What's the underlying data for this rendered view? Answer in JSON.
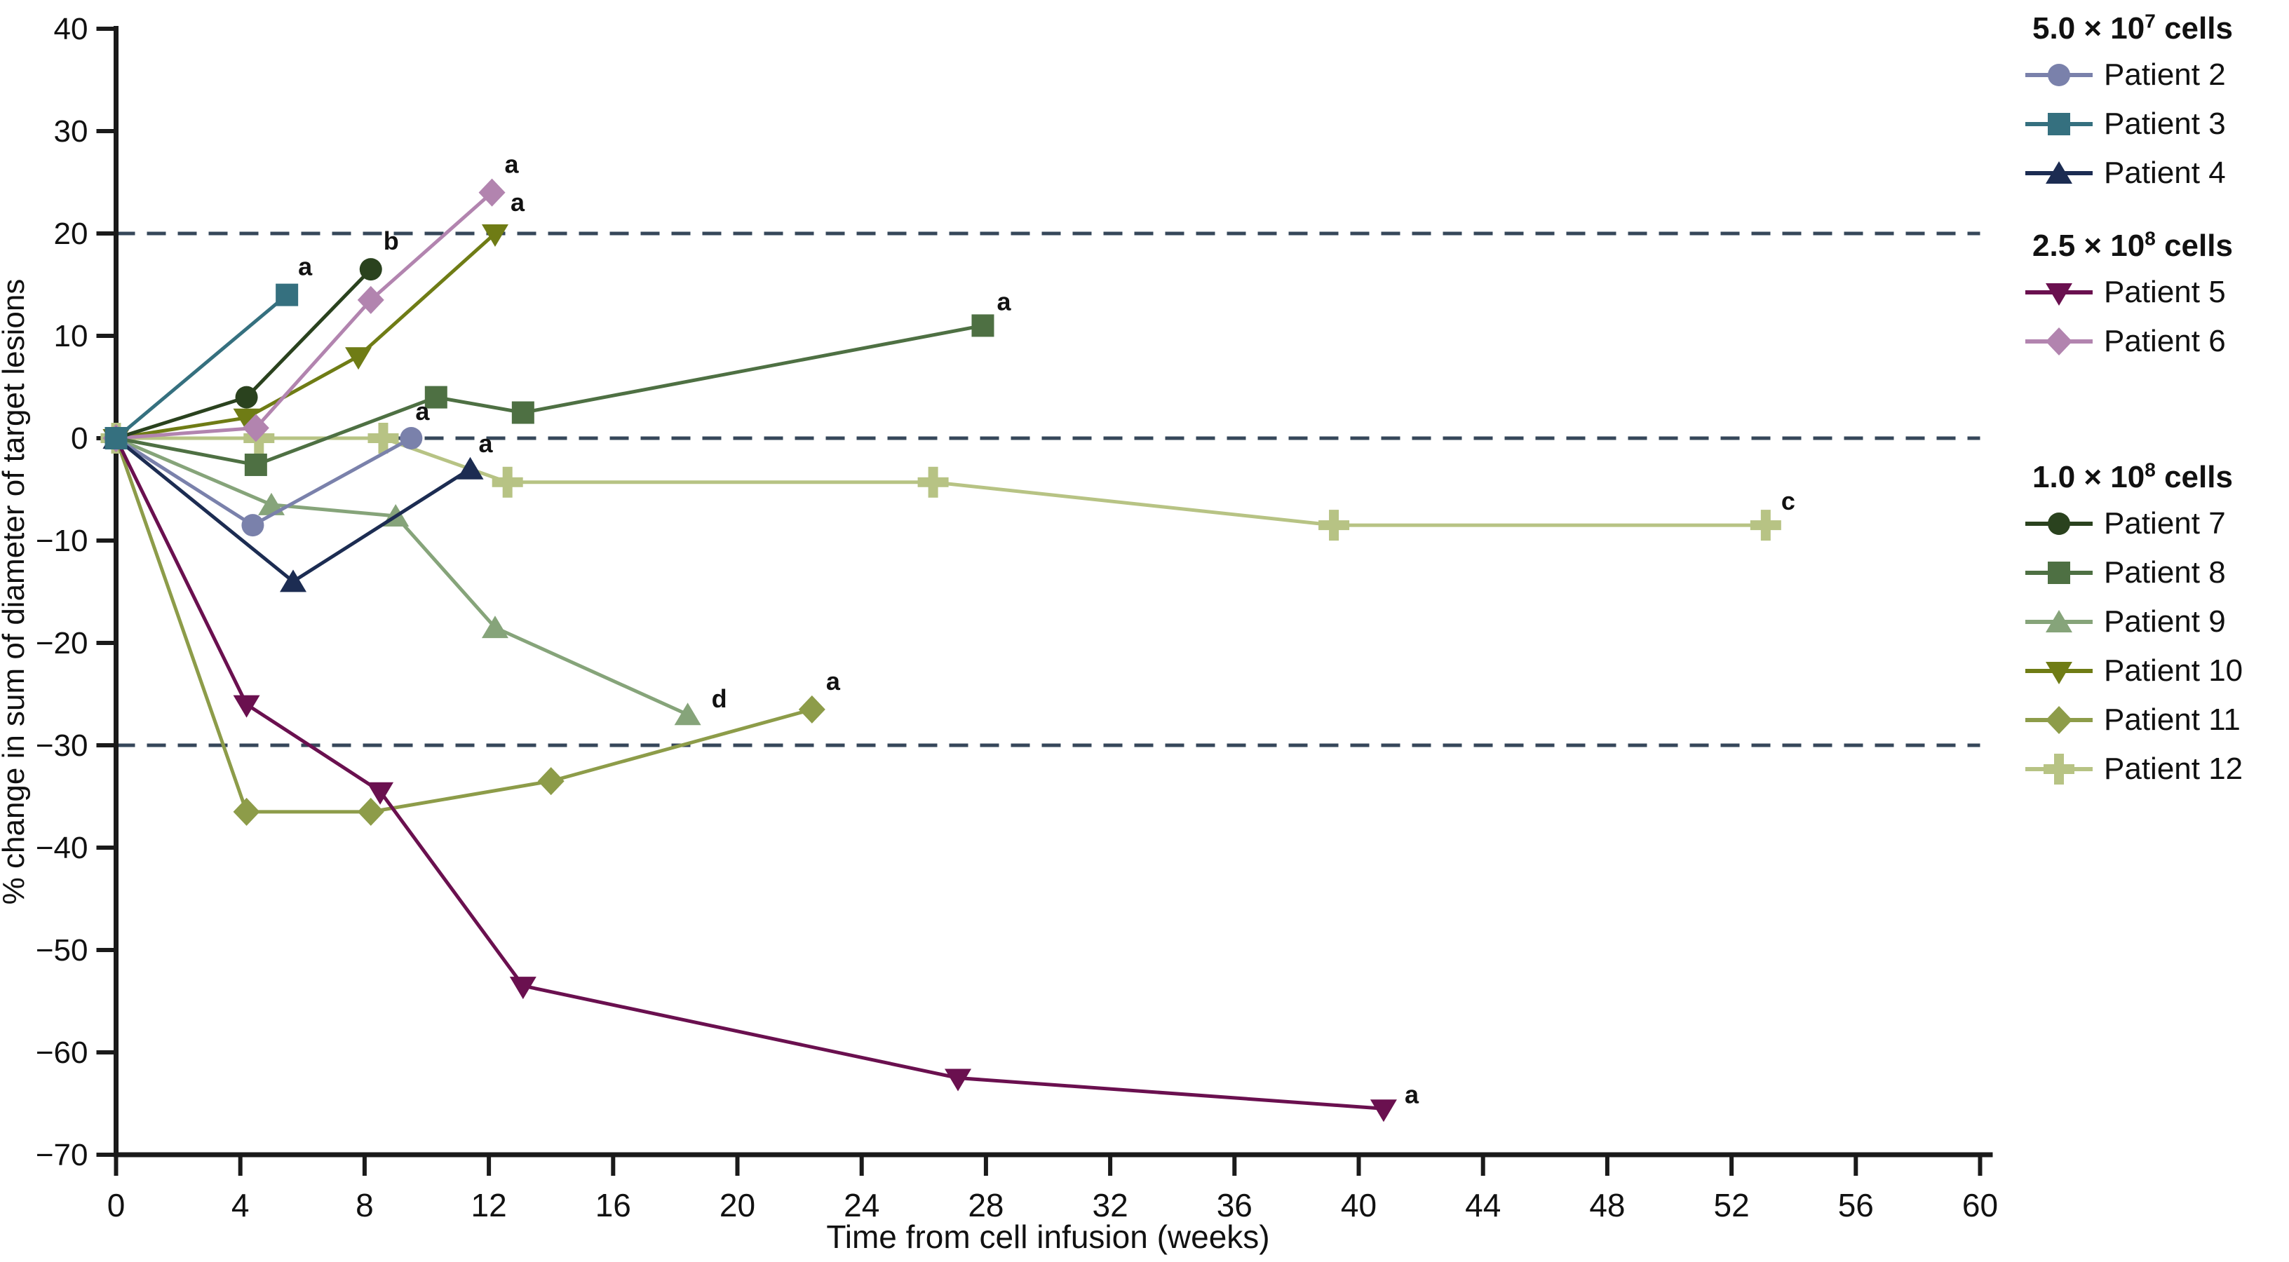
{
  "figure": {
    "background": "#ffffff"
  },
  "legend": {
    "groups": [
      {
        "title_base": "5.0 × 10",
        "title_sup": "7",
        "title_suffix": " cells",
        "items": [
          {
            "id": "p2",
            "label": "Patient 2"
          },
          {
            "id": "p3",
            "label": "Patient 3"
          },
          {
            "id": "p4",
            "label": "Patient 4"
          }
        ]
      },
      {
        "title_base": "2.5 × 10",
        "title_sup": "8",
        "title_suffix": " cells",
        "items": [
          {
            "id": "p5",
            "label": "Patient 5"
          },
          {
            "id": "p6",
            "label": "Patient 6"
          }
        ]
      },
      {
        "title_base": "1.0 × 10",
        "title_sup": "8",
        "title_suffix": " cells",
        "items": [
          {
            "id": "p7",
            "label": "Patient 7"
          },
          {
            "id": "p8",
            "label": "Patient 8"
          },
          {
            "id": "p9",
            "label": "Patient 9"
          },
          {
            "id": "p10",
            "label": "Patient 10"
          },
          {
            "id": "p11",
            "label": "Patient 11"
          },
          {
            "id": "p12",
            "label": "Patient 12"
          }
        ]
      }
    ]
  },
  "chart_data": {
    "type": "line",
    "title": "",
    "xlabel": "Time from cell infusion (weeks)",
    "ylabel": "% change in sum of diameter of target lesions",
    "xlim": [
      0,
      60
    ],
    "ylim": [
      -70,
      40
    ],
    "x_ticks": [
      0,
      4,
      8,
      12,
      16,
      20,
      24,
      28,
      32,
      36,
      40,
      44,
      48,
      52,
      56,
      60
    ],
    "y_ticks": [
      40,
      30,
      20,
      10,
      0,
      -10,
      -20,
      -30,
      -40,
      -50,
      -60,
      -70
    ],
    "grid": "off",
    "reference_lines": [
      20,
      0,
      -30
    ],
    "reference_color": "#36475a",
    "axis_color": "#1a1a1a",
    "legend_position": "right",
    "draw_order": [
      "p12",
      "p11",
      "p9",
      "p5",
      "p10",
      "p6",
      "p7",
      "p8",
      "p2",
      "p4",
      "p3"
    ],
    "series": [
      {
        "id": "p2",
        "name": "Patient 2",
        "group": "5.0 × 10⁷ cells",
        "color": "#7a81ab",
        "marker": "circle",
        "annotation": {
          "text": "a",
          "dx": 6,
          "dy": -26
        },
        "points": [
          [
            0,
            0
          ],
          [
            4.4,
            -8.5
          ],
          [
            9.5,
            0
          ]
        ]
      },
      {
        "id": "p3",
        "name": "Patient 3",
        "group": "5.0 × 10⁷ cells",
        "color": "#35707f",
        "marker": "square",
        "annotation": {
          "text": "a",
          "dx": 16,
          "dy": -28
        },
        "points": [
          [
            0,
            0
          ],
          [
            5.5,
            14
          ]
        ]
      },
      {
        "id": "p4",
        "name": "Patient 4",
        "group": "5.0 × 10⁷ cells",
        "color": "#1c2c52",
        "marker": "triangle-up",
        "annotation": {
          "text": "a",
          "dx": 12,
          "dy": -24
        },
        "points": [
          [
            0,
            0
          ],
          [
            5.7,
            -14
          ],
          [
            11.4,
            -3
          ]
        ]
      },
      {
        "id": "p5",
        "name": "Patient 5",
        "group": "2.5 × 10⁸ cells",
        "color": "#6a104f",
        "marker": "triangle-down",
        "annotation": {
          "text": "a",
          "dx": 30,
          "dy": -8
        },
        "points": [
          [
            0,
            0
          ],
          [
            4.2,
            -26
          ],
          [
            8.5,
            -34.5
          ],
          [
            13.1,
            -53.5
          ],
          [
            27.1,
            -62.5
          ],
          [
            40.8,
            -65.5
          ]
        ]
      },
      {
        "id": "p6",
        "name": "Patient 6",
        "group": "2.5 × 10⁸ cells",
        "color": "#b284af",
        "marker": "diamond",
        "annotation": {
          "text": "a",
          "dx": 18,
          "dy": -28
        },
        "points": [
          [
            0,
            0
          ],
          [
            4.5,
            1
          ],
          [
            8.2,
            13.5
          ],
          [
            12.1,
            24
          ]
        ]
      },
      {
        "id": "p7",
        "name": "Patient 7",
        "group": "1.0 × 10⁸ cells",
        "color": "#2a421e",
        "marker": "circle",
        "annotation": {
          "text": "b",
          "dx": 18,
          "dy": -28
        },
        "points": [
          [
            0,
            0
          ],
          [
            4.2,
            4
          ],
          [
            8.2,
            16.5
          ]
        ]
      },
      {
        "id": "p8",
        "name": "Patient 8",
        "group": "1.0 × 10⁸ cells",
        "color": "#4e7043",
        "marker": "square",
        "annotation": {
          "text": "a",
          "dx": 20,
          "dy": -22
        },
        "points": [
          [
            0,
            0
          ],
          [
            4.5,
            -2.6
          ],
          [
            10.3,
            4
          ],
          [
            13.1,
            2.5
          ],
          [
            27.9,
            11
          ]
        ]
      },
      {
        "id": "p9",
        "name": "Patient 9",
        "group": "1.0 × 10⁸ cells",
        "color": "#86a47a",
        "marker": "triangle-up",
        "annotation": {
          "text": "d",
          "dx": 34,
          "dy": -10
        },
        "points": [
          [
            0,
            0
          ],
          [
            5,
            -6.5
          ],
          [
            9,
            -7.6
          ],
          [
            12.2,
            -18.5
          ],
          [
            18.4,
            -27
          ]
        ]
      },
      {
        "id": "p10",
        "name": "Patient 10",
        "group": "1.0 × 10⁸ cells",
        "color": "#6f7c15",
        "marker": "triangle-down",
        "annotation": {
          "text": "a",
          "dx": 22,
          "dy": -32
        },
        "points": [
          [
            0,
            0
          ],
          [
            4.2,
            2
          ],
          [
            7.8,
            8
          ],
          [
            12.2,
            20
          ]
        ]
      },
      {
        "id": "p11",
        "name": "Patient 11",
        "group": "1.0 × 10⁸ cells",
        "color": "#8d9c49",
        "marker": "diamond",
        "annotation": {
          "text": "a",
          "dx": 20,
          "dy": -28
        },
        "points": [
          [
            0,
            0
          ],
          [
            4.2,
            -36.5
          ],
          [
            8.2,
            -36.5
          ],
          [
            14,
            -33.5
          ],
          [
            22.4,
            -26.5
          ]
        ]
      },
      {
        "id": "p12",
        "name": "Patient 12",
        "group": "1.0 × 10⁸ cells",
        "color": "#b7c384",
        "marker": "plus",
        "annotation": {
          "text": "c",
          "dx": 22,
          "dy": -22
        },
        "points": [
          [
            0,
            0
          ],
          [
            4.6,
            0
          ],
          [
            8.6,
            0
          ],
          [
            12.6,
            -4.3
          ],
          [
            26.3,
            -4.3
          ],
          [
            39.2,
            -8.5
          ],
          [
            53.1,
            -8.5
          ]
        ]
      }
    ]
  }
}
